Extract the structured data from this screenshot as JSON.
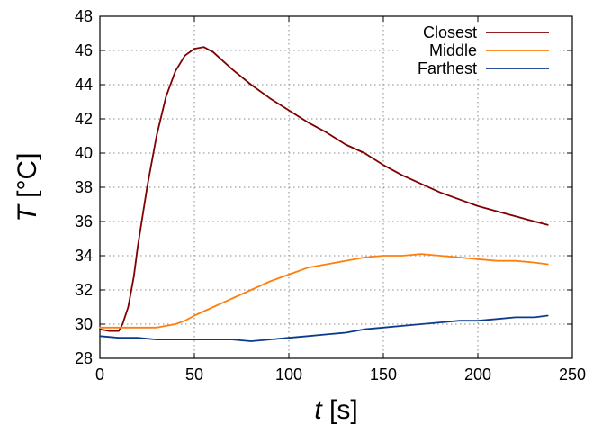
{
  "chart_data": {
    "type": "line",
    "title": "",
    "xlabel": "t [s]",
    "ylabel": "T [°C]",
    "xlabel_parts": {
      "symbol": "t",
      "unit": "[s]"
    },
    "ylabel_parts": {
      "symbol": "T",
      "unit": "[°C]"
    },
    "xlim": [
      0,
      250
    ],
    "ylim": [
      28,
      48
    ],
    "xticks": [
      0,
      50,
      100,
      150,
      200,
      250
    ],
    "yticks": [
      28,
      30,
      32,
      34,
      36,
      38,
      40,
      42,
      44,
      46,
      48
    ],
    "grid": true,
    "legend_position": "top-right",
    "series": [
      {
        "name": "Closest",
        "color": "#800000",
        "x": [
          0,
          5,
          10,
          12,
          15,
          18,
          20,
          25,
          30,
          35,
          40,
          45,
          50,
          55,
          60,
          65,
          70,
          80,
          90,
          100,
          110,
          120,
          130,
          140,
          150,
          160,
          170,
          180,
          190,
          200,
          210,
          220,
          230,
          237
        ],
        "values": [
          29.7,
          29.6,
          29.6,
          30.0,
          31.0,
          32.8,
          34.5,
          38.0,
          41.0,
          43.3,
          44.8,
          45.7,
          46.1,
          46.2,
          45.9,
          45.4,
          44.9,
          44.0,
          43.2,
          42.5,
          41.8,
          41.2,
          40.5,
          40.0,
          39.3,
          38.7,
          38.2,
          37.7,
          37.3,
          36.9,
          36.6,
          36.3,
          36.0,
          35.8
        ]
      },
      {
        "name": "Middle",
        "color": "#ff7f0e",
        "x": [
          0,
          10,
          20,
          30,
          40,
          45,
          50,
          60,
          70,
          80,
          90,
          100,
          110,
          120,
          130,
          140,
          150,
          160,
          170,
          180,
          190,
          200,
          210,
          220,
          230,
          237
        ],
        "values": [
          29.8,
          29.8,
          29.8,
          29.8,
          30.0,
          30.2,
          30.5,
          31.0,
          31.5,
          32.0,
          32.5,
          32.9,
          33.3,
          33.5,
          33.7,
          33.9,
          34.0,
          34.0,
          34.1,
          34.0,
          33.9,
          33.8,
          33.7,
          33.7,
          33.6,
          33.5
        ]
      },
      {
        "name": "Farthest",
        "color": "#0b3c8c",
        "x": [
          0,
          10,
          20,
          30,
          40,
          50,
          60,
          70,
          80,
          90,
          100,
          110,
          120,
          130,
          140,
          150,
          160,
          170,
          180,
          190,
          200,
          210,
          220,
          230,
          237
        ],
        "values": [
          29.3,
          29.2,
          29.2,
          29.1,
          29.1,
          29.1,
          29.1,
          29.1,
          29.0,
          29.1,
          29.2,
          29.3,
          29.4,
          29.5,
          29.7,
          29.8,
          29.9,
          30.0,
          30.1,
          30.2,
          30.2,
          30.3,
          30.4,
          30.4,
          30.5
        ]
      }
    ]
  }
}
